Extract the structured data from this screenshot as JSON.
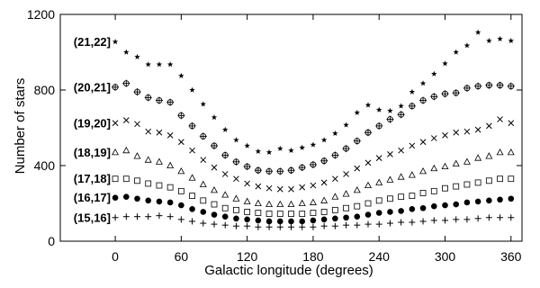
{
  "chart_data": {
    "type": "scatter",
    "title": "",
    "xlabel": "Galactic longitude (degrees)",
    "ylabel": "Number of stars",
    "xlim": [
      -50,
      370
    ],
    "ylim": [
      0,
      1200
    ],
    "xticks": [
      0,
      60,
      120,
      180,
      240,
      300,
      360
    ],
    "yticks": [
      0,
      400,
      800,
      1200
    ],
    "x": [
      0,
      10,
      20,
      30,
      40,
      50,
      60,
      70,
      80,
      90,
      100,
      110,
      120,
      130,
      140,
      150,
      160,
      170,
      180,
      190,
      200,
      210,
      220,
      230,
      240,
      250,
      260,
      270,
      280,
      290,
      300,
      310,
      320,
      330,
      340,
      350,
      360
    ],
    "grid": false,
    "legend": "labels left of first points",
    "series": [
      {
        "name": "(21,22]",
        "marker": "star",
        "values": [
          1055,
          1000,
          975,
          935,
          935,
          935,
          875,
          800,
          725,
          655,
          590,
          535,
          505,
          475,
          470,
          490,
          480,
          495,
          510,
          535,
          570,
          615,
          680,
          720,
          695,
          690,
          715,
          790,
          835,
          885,
          940,
          1000,
          1035,
          1105,
          1060,
          1070,
          1060
        ]
      },
      {
        "name": "(20,21]",
        "marker": "circle-plus",
        "values": [
          815,
          835,
          790,
          760,
          745,
          735,
          665,
          610,
          555,
          505,
          455,
          420,
          395,
          375,
          370,
          370,
          375,
          390,
          405,
          425,
          455,
          490,
          530,
          575,
          610,
          645,
          670,
          715,
          745,
          765,
          780,
          785,
          810,
          820,
          825,
          825,
          820
        ]
      },
      {
        "name": "(19,20]",
        "marker": "x",
        "values": [
          625,
          640,
          620,
          580,
          575,
          560,
          525,
          480,
          430,
          390,
          355,
          330,
          305,
          290,
          280,
          275,
          275,
          285,
          295,
          310,
          330,
          355,
          385,
          415,
          440,
          460,
          480,
          505,
          525,
          545,
          560,
          575,
          580,
          590,
          610,
          645,
          625
        ]
      },
      {
        "name": "(18,19]",
        "marker": "triangle-open",
        "values": [
          470,
          480,
          450,
          430,
          420,
          400,
          370,
          335,
          300,
          270,
          245,
          225,
          210,
          200,
          195,
          195,
          195,
          200,
          205,
          215,
          235,
          250,
          270,
          295,
          310,
          325,
          340,
          350,
          370,
          385,
          395,
          410,
          420,
          440,
          450,
          470,
          470
        ]
      },
      {
        "name": "(17,18]",
        "marker": "square-open",
        "values": [
          330,
          330,
          320,
          305,
          295,
          285,
          265,
          240,
          215,
          195,
          175,
          165,
          155,
          150,
          145,
          145,
          145,
          145,
          150,
          155,
          165,
          175,
          185,
          200,
          215,
          225,
          235,
          240,
          255,
          265,
          280,
          290,
          300,
          310,
          320,
          330,
          330
        ]
      },
      {
        "name": "(16,17]",
        "marker": "circle-filled",
        "values": [
          230,
          235,
          225,
          215,
          210,
          205,
          190,
          170,
          155,
          140,
          130,
          120,
          115,
          110,
          105,
          105,
          105,
          105,
          110,
          115,
          120,
          125,
          130,
          140,
          150,
          155,
          160,
          170,
          175,
          185,
          190,
          195,
          205,
          210,
          215,
          220,
          225
        ]
      },
      {
        "name": "(15,16]",
        "marker": "plus",
        "values": [
          125,
          130,
          130,
          130,
          135,
          130,
          115,
          105,
          95,
          90,
          85,
          80,
          80,
          75,
          75,
          75,
          75,
          75,
          75,
          80,
          80,
          85,
          85,
          90,
          90,
          95,
          100,
          100,
          105,
          110,
          110,
          115,
          115,
          120,
          125,
          125,
          125
        ]
      }
    ]
  }
}
